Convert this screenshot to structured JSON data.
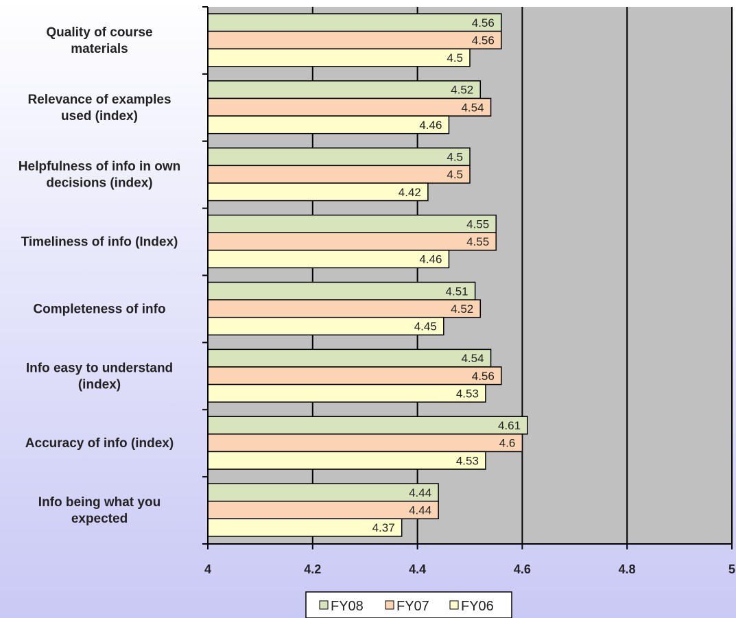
{
  "chart_data": {
    "type": "bar",
    "orientation": "horizontal",
    "categories": [
      "Quality of course materials",
      "Relevance of examples used (index)",
      "Helpfulness of info in own decisions (index)",
      "Timeliness of info (Index)",
      "Completeness of info",
      "Info easy to understand (index)",
      "Accuracy of info (index)",
      "Info being what you expected"
    ],
    "series": [
      {
        "name": "FY08",
        "color": "#d8e4bc",
        "values": [
          4.56,
          4.52,
          4.5,
          4.55,
          4.51,
          4.54,
          4.61,
          4.44
        ]
      },
      {
        "name": "FY07",
        "color": "#fbd4b4",
        "values": [
          4.56,
          4.54,
          4.5,
          4.55,
          4.52,
          4.56,
          4.6,
          4.44
        ]
      },
      {
        "name": "FY06",
        "color": "#ffffcc",
        "values": [
          4.5,
          4.46,
          4.42,
          4.46,
          4.45,
          4.53,
          4.53,
          4.37
        ]
      }
    ],
    "data_labels": [
      [
        "4.56",
        "4.52",
        "4.5",
        "4.55",
        "4.51",
        "4.54",
        "4.61",
        "4.44"
      ],
      [
        "4.56",
        "4.54",
        "4.5",
        "4.55",
        "4.52",
        "4.56",
        "4.6",
        "4.44"
      ],
      [
        "4.5",
        "4.46",
        "4.42",
        "4.46",
        "4.45",
        "4.53",
        "4.53",
        "4.37"
      ]
    ],
    "xlim": [
      4,
      5
    ],
    "xticks": [
      4,
      4.2,
      4.4,
      4.6,
      4.8,
      5
    ],
    "xtick_labels": [
      "4",
      "4.2",
      "4.4",
      "4.6",
      "4.8",
      "5"
    ],
    "grid": true,
    "plot_background": "#c0c0c0",
    "legend": {
      "position": "bottom",
      "labels": [
        "FY08",
        "FY07",
        "FY06"
      ]
    },
    "title": "",
    "xlabel": "",
    "ylabel": ""
  }
}
